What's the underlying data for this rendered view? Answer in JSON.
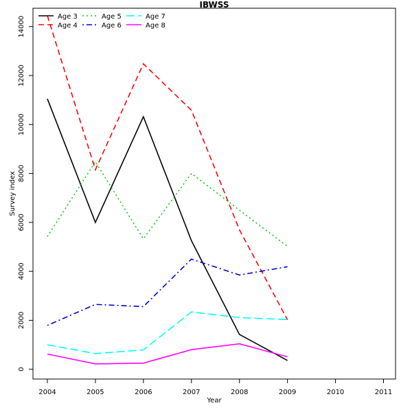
{
  "chart_data": {
    "type": "line",
    "title": "IBWSS",
    "xlabel": "Year",
    "ylabel": "Survey index",
    "x_ticks": [
      "2004",
      "2005",
      "2006",
      "2007",
      "2008",
      "2009",
      "2010",
      "2011"
    ],
    "y_ticks": [
      "0",
      "2000",
      "4000",
      "6000",
      "8000",
      "10000",
      "12000",
      "14000"
    ],
    "xlim": [
      2003.7,
      2011.25
    ],
    "ylim": [
      -400,
      14750
    ],
    "grid": false,
    "legend_position": "top-left",
    "x": [
      2004,
      2005,
      2006,
      2007,
      2008,
      2009
    ],
    "series": [
      {
        "name": "Age 3",
        "color": "#000000",
        "dash": "solid",
        "values": [
          11050,
          6000,
          10320,
          5250,
          1420,
          360
        ]
      },
      {
        "name": "Age 4",
        "color": "#ff0000",
        "dash": "dashed",
        "values": [
          14450,
          8150,
          12480,
          10580,
          5700,
          2020
        ]
      },
      {
        "name": "Age 5",
        "color": "#00cd00",
        "dash": "dotted",
        "values": [
          5420,
          8480,
          5330,
          8000,
          6500,
          5020
        ]
      },
      {
        "name": "Age 6",
        "color": "#0000cd",
        "dash": "dotdash",
        "values": [
          1790,
          2650,
          2560,
          4500,
          3850,
          4190
        ]
      },
      {
        "name": "Age 7",
        "color": "#00ffff",
        "dash": "longdash",
        "values": [
          1000,
          640,
          790,
          2340,
          2110,
          2030
        ]
      },
      {
        "name": "Age 8",
        "color": "#ff00ff",
        "dash": "solid",
        "values": [
          620,
          220,
          250,
          800,
          1040,
          510
        ]
      }
    ]
  }
}
